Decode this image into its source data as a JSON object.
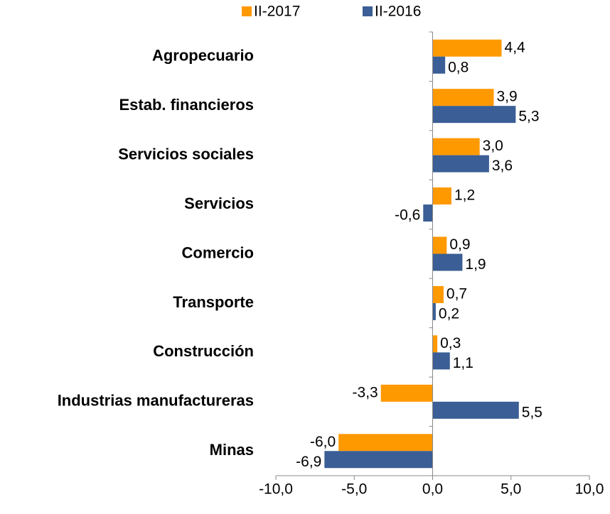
{
  "chart_data": {
    "type": "bar",
    "orientation": "horizontal",
    "categories": [
      "Agropecuario",
      "Estab. financieros",
      "Servicios sociales",
      "Servicios",
      "Comercio",
      "Transporte",
      "Construcción",
      "Industrias manufactureras",
      "Minas"
    ],
    "series": [
      {
        "name": "II-2017",
        "color": "#ff9900",
        "values": [
          4.4,
          3.9,
          3.0,
          1.2,
          0.9,
          0.7,
          0.3,
          -3.3,
          -6.0
        ],
        "value_labels": [
          "4,4",
          "3,9",
          "3,0",
          "1,2",
          "0,9",
          "0,7",
          "0,3",
          "-3,3",
          "-6,0"
        ]
      },
      {
        "name": "II-2016",
        "color": "#3a5e95",
        "values": [
          0.8,
          5.3,
          3.6,
          -0.6,
          1.9,
          0.2,
          1.1,
          5.5,
          -6.9
        ],
        "value_labels": [
          "0,8",
          "5,3",
          "3,6",
          "-0,6",
          "1,9",
          "0,2",
          "1,1",
          "5,5",
          "-6,9"
        ]
      }
    ],
    "xlim": [
      -10,
      10
    ],
    "xticks": [
      {
        "value": -10,
        "label": "-10,0"
      },
      {
        "value": -5,
        "label": "-5,0"
      },
      {
        "value": 0,
        "label": "0,0"
      },
      {
        "value": 5,
        "label": "5,0"
      },
      {
        "value": 10,
        "label": "10,0"
      }
    ],
    "legend": "top"
  }
}
